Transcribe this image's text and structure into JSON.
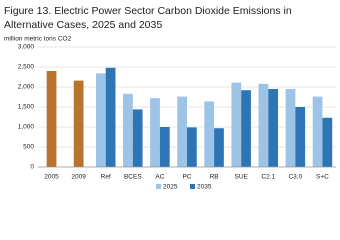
{
  "chart_data": {
    "type": "bar",
    "title_lines": [
      "Figure 13. Electric Power Sector Carbon Dioxide Emissions in",
      "Alternative Cases, 2025 and 2035"
    ],
    "y_label": "million metric tons CO2",
    "categories": [
      "2005",
      "2009",
      "Ref",
      "BCES",
      "AC",
      "PC",
      "RB",
      "SUE",
      "C2.1",
      "C3.0",
      "S+C"
    ],
    "series": [
      {
        "color": "#b8732f",
        "values": [
          2400,
          2160,
          null,
          null,
          null,
          null,
          null,
          null,
          null,
          null,
          null
        ]
      },
      {
        "name": "2025",
        "color": "#9dc3e6",
        "values": [
          null,
          null,
          2340,
          1830,
          1720,
          1760,
          1640,
          2110,
          2080,
          1950,
          1760
        ]
      },
      {
        "name": "2035",
        "color": "#2e75b6",
        "values": [
          null,
          null,
          2480,
          1440,
          1000,
          990,
          970,
          1920,
          1950,
          1500,
          1230
        ]
      }
    ],
    "ylim": [
      0,
      3000
    ],
    "yticks": [
      0,
      500,
      {
        "value": 1000,
        "label": "1,000"
      },
      {
        "value": 1500,
        "label": "1,500"
      },
      {
        "value": 2000,
        "label": "2,000"
      },
      {
        "value": 2500,
        "label": "2,500"
      },
      {
        "value": 3000,
        "label": "3,000"
      }
    ],
    "grid": true
  }
}
